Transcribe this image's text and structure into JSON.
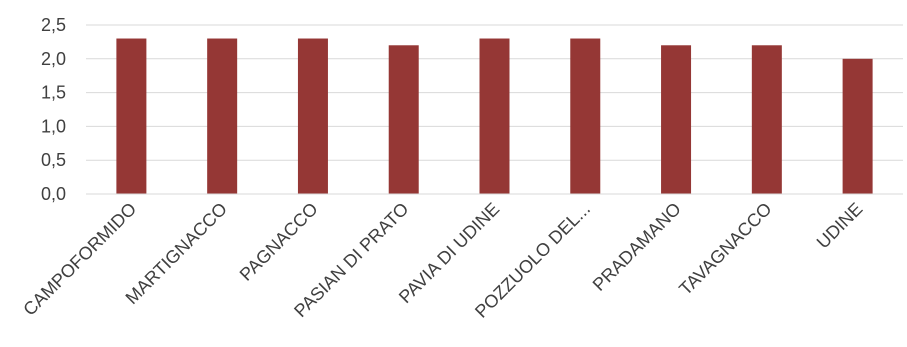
{
  "chart_data": {
    "type": "bar",
    "categories": [
      "CAMPOFORMIDO",
      "MARTIGNACCO",
      "PAGNACCO",
      "PASIAN DI PRATO",
      "PAVIA DI UDINE",
      "POZZUOLO DEL...",
      "PRADAMANO",
      "TAVAGNACCO",
      "UDINE"
    ],
    "values": [
      2.3,
      2.3,
      2.3,
      2.2,
      2.3,
      2.3,
      2.2,
      2.2,
      2.0
    ],
    "title": "",
    "xlabel": "",
    "ylabel": "",
    "ylim": [
      0,
      2.5
    ],
    "yticks": [
      "0,0",
      "0,5",
      "1,0",
      "1,5",
      "2,0",
      "2,5"
    ],
    "grid": true,
    "colors": {
      "bar": "#953735"
    }
  }
}
